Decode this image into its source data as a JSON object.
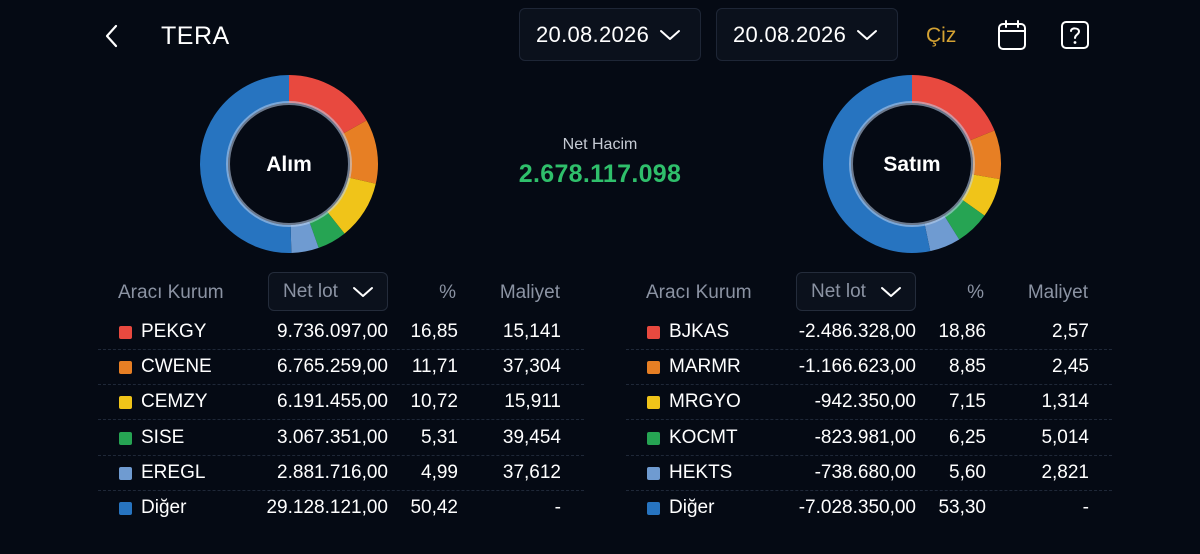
{
  "header": {
    "title": "TERA",
    "date_from": "20.08.2026",
    "date_to": "20.08.2026",
    "draw_label": "Çiz"
  },
  "summary": {
    "net_volume_label": "Net Hacim",
    "net_volume_value": "2.678.117.098"
  },
  "colors": {
    "accent_gold": "#d4a233",
    "positive_green": "#2fbf6b",
    "series": [
      "#e8493f",
      "#e77f24",
      "#f0c419",
      "#26a453",
      "#6f9bd1",
      "#2774c0"
    ]
  },
  "buy": {
    "chart_label": "Alım",
    "columns": {
      "broker": "Aracı Kurum",
      "net_lot": "Net lot",
      "pct": "%",
      "cost": "Maliyet"
    },
    "rows": [
      {
        "name": "PEKGY",
        "net_lot": "9.736.097,00",
        "pct": "16,85",
        "cost": "15,141",
        "share": 16.85
      },
      {
        "name": "CWENE",
        "net_lot": "6.765.259,00",
        "pct": "11,71",
        "cost": "37,304",
        "share": 11.71
      },
      {
        "name": "CEMZY",
        "net_lot": "6.191.455,00",
        "pct": "10,72",
        "cost": "15,911",
        "share": 10.72
      },
      {
        "name": "SISE",
        "net_lot": "3.067.351,00",
        "pct": "5,31",
        "cost": "39,454",
        "share": 5.31
      },
      {
        "name": "EREGL",
        "net_lot": "2.881.716,00",
        "pct": "4,99",
        "cost": "37,612",
        "share": 4.99
      },
      {
        "name": "Diğer",
        "net_lot": "29.128.121,00",
        "pct": "50,42",
        "cost": "-",
        "share": 50.42
      }
    ]
  },
  "sell": {
    "chart_label": "Satım",
    "columns": {
      "broker": "Aracı Kurum",
      "net_lot": "Net lot",
      "pct": "%",
      "cost": "Maliyet"
    },
    "rows": [
      {
        "name": "BJKAS",
        "net_lot": "-2.486.328,00",
        "pct": "18,86",
        "cost": "2,57",
        "share": 18.86
      },
      {
        "name": "MARMR",
        "net_lot": "-1.166.623,00",
        "pct": "8,85",
        "cost": "2,45",
        "share": 8.85
      },
      {
        "name": "MRGYO",
        "net_lot": "-942.350,00",
        "pct": "7,15",
        "cost": "1,314",
        "share": 7.15
      },
      {
        "name": "KOCMT",
        "net_lot": "-823.981,00",
        "pct": "6,25",
        "cost": "5,014",
        "share": 6.25
      },
      {
        "name": "HEKTS",
        "net_lot": "-738.680,00",
        "pct": "5,60",
        "cost": "2,821",
        "share": 5.6
      },
      {
        "name": "Diğer",
        "net_lot": "-7.028.350,00",
        "pct": "53,30",
        "cost": "-",
        "share": 53.3
      }
    ]
  }
}
